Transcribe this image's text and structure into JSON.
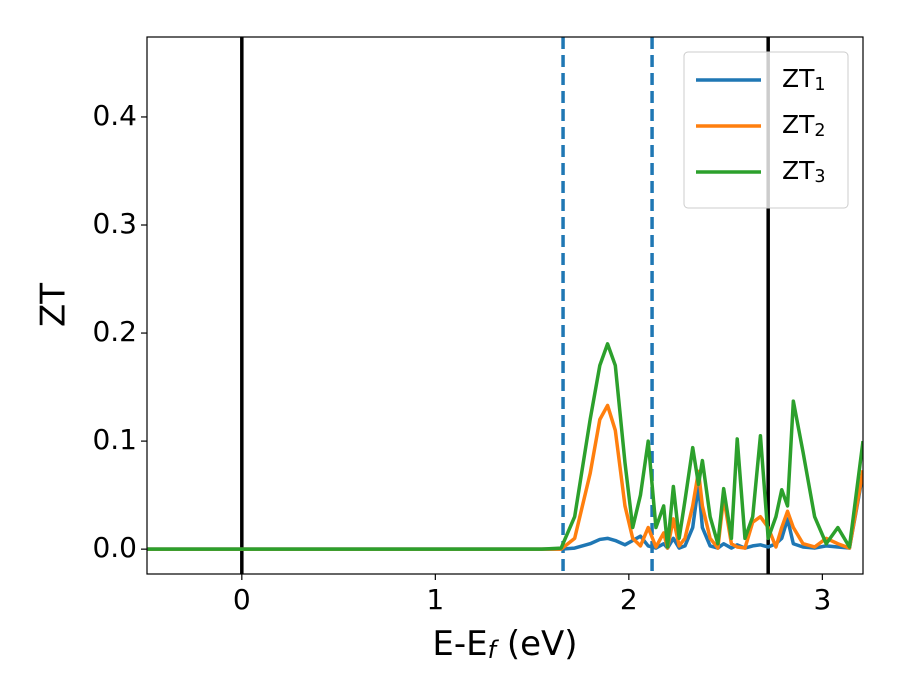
{
  "chart_data": {
    "type": "line",
    "xlabel": "E-E_f (eV)",
    "ylabel": "ZT",
    "xlim": [
      -0.49,
      3.21
    ],
    "ylim": [
      -0.023,
      0.474
    ],
    "xticks": [
      0,
      1,
      2,
      3
    ],
    "yticks": [
      {
        "value": 0,
        "label": "0.0"
      },
      0.1,
      0.2,
      0.3,
      0.4
    ],
    "legend": "upper right",
    "x": [
      -0.49,
      1.55,
      1.65,
      1.72,
      1.8,
      1.85,
      1.89,
      1.93,
      1.98,
      2.02,
      2.06,
      2.1,
      2.14,
      2.18,
      2.2,
      2.23,
      2.26,
      2.29,
      2.33,
      2.36,
      2.38,
      2.42,
      2.46,
      2.49,
      2.53,
      2.56,
      2.6,
      2.64,
      2.68,
      2.72,
      2.76,
      2.79,
      2.82,
      2.85,
      2.9,
      2.96,
      3.02,
      3.08,
      3.14,
      3.21
    ],
    "series": [
      {
        "name": "ZT_1",
        "color": "#1f77b4",
        "values": [
          0,
          0,
          0,
          0.001,
          0.005,
          0.009,
          0.01,
          0.008,
          0.004,
          0.008,
          0.012,
          0.003,
          0.001,
          0.005,
          0.001,
          0.01,
          0.001,
          0.003,
          0.02,
          0.06,
          0.02,
          0.003,
          0.001,
          0.005,
          0.001,
          0.004,
          0.001,
          0.003,
          0.004,
          0.002,
          0.005,
          0.01,
          0.028,
          0.005,
          0.002,
          0.001,
          0.003,
          0.002,
          0.001,
          0.07
        ]
      },
      {
        "name": "ZT_2",
        "color": "#ff7f0e",
        "values": [
          0,
          0,
          0,
          0.01,
          0.07,
          0.12,
          0.133,
          0.11,
          0.04,
          0.01,
          0.003,
          0.02,
          0.002,
          0.015,
          0.001,
          0.028,
          0.003,
          0.01,
          0.04,
          0.072,
          0.04,
          0.01,
          0.001,
          0.048,
          0.005,
          0.002,
          0.001,
          0.025,
          0.03,
          0.02,
          0.002,
          0.02,
          0.035,
          0.02,
          0.005,
          0.002,
          0.01,
          0.005,
          0.001,
          0.073
        ]
      },
      {
        "name": "ZT_3",
        "color": "#2ca02c",
        "values": [
          0,
          0,
          0.001,
          0.03,
          0.12,
          0.17,
          0.19,
          0.17,
          0.08,
          0.02,
          0.05,
          0.1,
          0.02,
          0.04,
          0.002,
          0.058,
          0.01,
          0.045,
          0.094,
          0.06,
          0.082,
          0.03,
          0.005,
          0.056,
          0.01,
          0.102,
          0.01,
          0.03,
          0.105,
          0.01,
          0.03,
          0.055,
          0.04,
          0.137,
          0.09,
          0.03,
          0.005,
          0.02,
          0.002,
          0.1
        ]
      }
    ],
    "vlines": [
      {
        "x": 0,
        "color": "#000000",
        "style": "solid"
      },
      {
        "x": 2.72,
        "color": "#000000",
        "style": "solid"
      },
      {
        "x": 1.66,
        "color": "#1f77b4",
        "style": "dashed"
      },
      {
        "x": 2.12,
        "color": "#1f77b4",
        "style": "dashed"
      }
    ]
  }
}
